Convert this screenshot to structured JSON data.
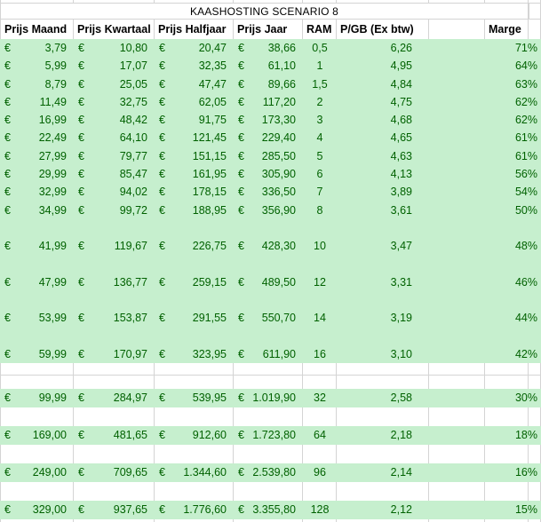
{
  "sheet_title": "KAASHOSTING SCENARIO 8",
  "currency_symbol": "€",
  "colors": {
    "row_fill_green": "#c6efce",
    "data_text_green": "#006100",
    "gridline_gray": "#d4d4d4",
    "header_text": "#000000",
    "background": "#ffffff"
  },
  "columns": [
    {
      "key": "maand",
      "label": "Prijs Maand",
      "format": "currency"
    },
    {
      "key": "kwartaal",
      "label": "Prijs Kwartaal",
      "format": "currency"
    },
    {
      "key": "halfjaar",
      "label": "Prijs Halfjaar",
      "format": "currency"
    },
    {
      "key": "jaar",
      "label": "Prijs Jaar",
      "format": "currency"
    },
    {
      "key": "ram",
      "label": "RAM",
      "format": "center"
    },
    {
      "key": "pgb",
      "label": "P/GB (Ex btw)",
      "format": "number"
    },
    {
      "key": "spacer",
      "label": "",
      "format": "empty"
    },
    {
      "key": "marge",
      "label": "Marge",
      "format": "percent"
    }
  ],
  "rows": [
    {
      "fill": "green",
      "maand": "3,79",
      "kwartaal": "10,80",
      "halfjaar": "20,47",
      "jaar": "38,66",
      "ram": "0,5",
      "pgb": "6,26",
      "marge": "71%"
    },
    {
      "fill": "green",
      "maand": "5,99",
      "kwartaal": "17,07",
      "halfjaar": "32,35",
      "jaar": "61,10",
      "ram": "1",
      "pgb": "4,95",
      "marge": "64%"
    },
    {
      "fill": "green",
      "maand": "8,79",
      "kwartaal": "25,05",
      "halfjaar": "47,47",
      "jaar": "89,66",
      "ram": "1,5",
      "pgb": "4,84",
      "marge": "63%"
    },
    {
      "fill": "green",
      "maand": "11,49",
      "kwartaal": "32,75",
      "halfjaar": "62,05",
      "jaar": "117,20",
      "ram": "2",
      "pgb": "4,75",
      "marge": "62%"
    },
    {
      "fill": "green",
      "maand": "16,99",
      "kwartaal": "48,42",
      "halfjaar": "91,75",
      "jaar": "173,30",
      "ram": "3",
      "pgb": "4,68",
      "marge": "62%"
    },
    {
      "fill": "green",
      "maand": "22,49",
      "kwartaal": "64,10",
      "halfjaar": "121,45",
      "jaar": "229,40",
      "ram": "4",
      "pgb": "4,65",
      "marge": "61%"
    },
    {
      "fill": "green",
      "maand": "27,99",
      "kwartaal": "79,77",
      "halfjaar": "151,15",
      "jaar": "285,50",
      "ram": "5",
      "pgb": "4,63",
      "marge": "61%"
    },
    {
      "fill": "green",
      "maand": "29,99",
      "kwartaal": "85,47",
      "halfjaar": "161,95",
      "jaar": "305,90",
      "ram": "6",
      "pgb": "4,13",
      "marge": "56%"
    },
    {
      "fill": "green",
      "maand": "32,99",
      "kwartaal": "94,02",
      "halfjaar": "178,15",
      "jaar": "336,50",
      "ram": "7",
      "pgb": "3,89",
      "marge": "54%"
    },
    {
      "fill": "green",
      "maand": "34,99",
      "kwartaal": "99,72",
      "halfjaar": "188,95",
      "jaar": "356,90",
      "ram": "8",
      "pgb": "3,61",
      "marge": "50%"
    },
    {
      "fill": "green"
    },
    {
      "fill": "green",
      "maand": "41,99",
      "kwartaal": "119,67",
      "halfjaar": "226,75",
      "jaar": "428,30",
      "ram": "10",
      "pgb": "3,47",
      "marge": "48%"
    },
    {
      "fill": "green"
    },
    {
      "fill": "green",
      "maand": "47,99",
      "kwartaal": "136,77",
      "halfjaar": "259,15",
      "jaar": "489,50",
      "ram": "12",
      "pgb": "3,31",
      "marge": "46%"
    },
    {
      "fill": "green"
    },
    {
      "fill": "green",
      "maand": "53,99",
      "kwartaal": "153,87",
      "halfjaar": "291,55",
      "jaar": "550,70",
      "ram": "14",
      "pgb": "3,19",
      "marge": "44%"
    },
    {
      "fill": "green"
    },
    {
      "fill": "green",
      "maand": "59,99",
      "kwartaal": "170,97",
      "halfjaar": "323,95",
      "jaar": "611,90",
      "ram": "16",
      "pgb": "3,10",
      "marge": "42%"
    },
    {
      "fill": "white"
    },
    {
      "fill": "white"
    },
    {
      "fill": "green",
      "maand": "99,99",
      "kwartaal": "284,97",
      "halfjaar": "539,95",
      "jaar": "1.019,90",
      "ram": "32",
      "pgb": "2,58",
      "marge": "30%"
    },
    {
      "fill": "white"
    },
    {
      "fill": "green",
      "maand": "169,00",
      "kwartaal": "481,65",
      "halfjaar": "912,60",
      "jaar": "1.723,80",
      "ram": "64",
      "pgb": "2,18",
      "marge": "18%"
    },
    {
      "fill": "white"
    },
    {
      "fill": "green",
      "maand": "249,00",
      "kwartaal": "709,65",
      "halfjaar": "1.344,60",
      "jaar": "2.539,80",
      "ram": "96",
      "pgb": "2,14",
      "marge": "16%"
    },
    {
      "fill": "white"
    },
    {
      "fill": "green",
      "maand": "329,00",
      "kwartaal": "937,65",
      "halfjaar": "1.776,60",
      "jaar": "3.355,80",
      "ram": "128",
      "pgb": "2,12",
      "marge": "15%"
    }
  ]
}
